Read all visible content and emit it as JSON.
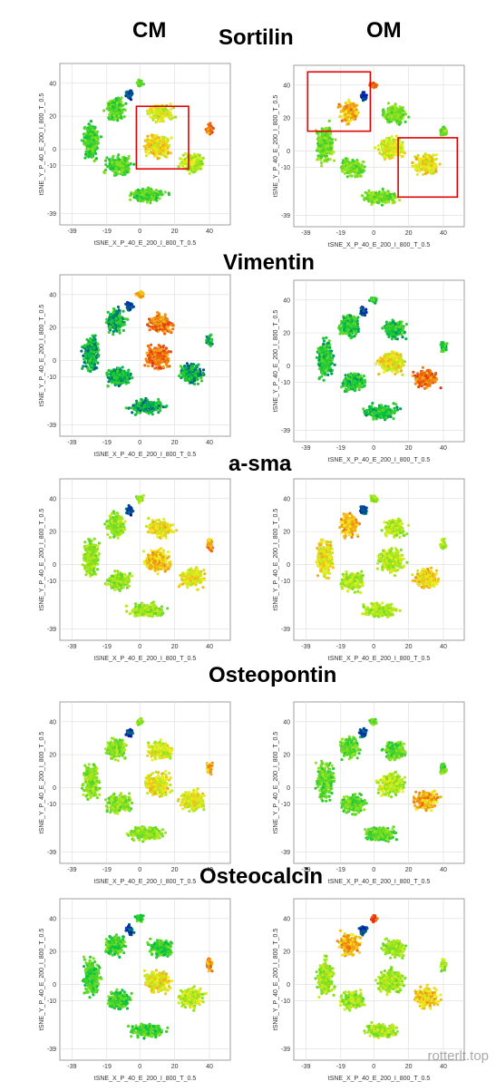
{
  "headers": {
    "left_column": "CM",
    "right_column": "OM",
    "markers": [
      "Sortilin",
      "Vimentin",
      "a-sma",
      "Osteopontin",
      "Osteocalcin"
    ]
  },
  "watermark": "rotterlt.top",
  "chart_data": {
    "type": "scatter",
    "description_rows": [
      "Sortilin",
      "Vimentin",
      "a-sma",
      "Osteopontin",
      "Osteocalcin"
    ],
    "columns": [
      "CM",
      "OM"
    ],
    "xlabel": "tSNE_X_P_40_E_200_I_800_T_0.5",
    "ylabel": "tSNE_Y_P_40_E_200_I_800_T_0.5",
    "x_ticks": [
      -39,
      -19,
      0,
      20,
      40
    ],
    "y_ticks": [
      40,
      20,
      0,
      -10,
      -39
    ],
    "xlim": [
      -46,
      52
    ],
    "ylim": [
      -46,
      52
    ],
    "colorscale": [
      "#0000cc",
      "#00c040",
      "#80e020",
      "#f0f020",
      "#f08010",
      "#e01010"
    ],
    "grid": true,
    "highlight_boxes_units": [
      {
        "panel": "Sortilin-CM",
        "x": [
          -2,
          28
        ],
        "y": [
          -12,
          26
        ]
      },
      {
        "panel": "Sortilin-OM",
        "x": [
          -38,
          -2
        ],
        "y": [
          12,
          48
        ]
      },
      {
        "panel": "Sortilin-OM",
        "x": [
          14,
          48
        ],
        "y": [
          -28,
          8
        ]
      }
    ]
  }
}
